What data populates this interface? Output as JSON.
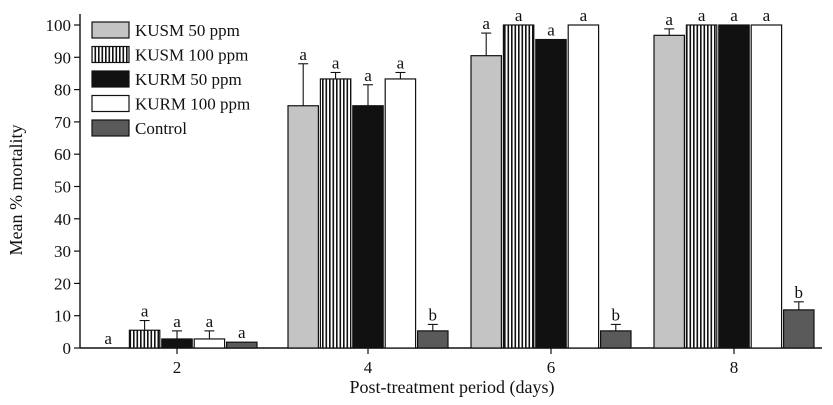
{
  "chart_data": {
    "type": "bar",
    "title": "",
    "xlabel": "Post-treatment period (days)",
    "ylabel": "Mean % mortality",
    "ylim": [
      0,
      100
    ],
    "yticks": [
      0,
      10,
      20,
      30,
      40,
      50,
      60,
      70,
      80,
      90,
      100
    ],
    "categories": [
      "2",
      "4",
      "6",
      "8"
    ],
    "legend_position": "top-left",
    "grid": false,
    "series": [
      {
        "name": "KUSM 50 ppm",
        "fill": "#c4c4c4",
        "pattern": "solid",
        "values": [
          0,
          75,
          90.5,
          96.8
        ],
        "errors": [
          0,
          13,
          7,
          2
        ],
        "labels": [
          "a",
          "a",
          "a",
          "a"
        ]
      },
      {
        "name": "KUSM 100 ppm",
        "fill": "#ffffff",
        "pattern": "vertical-stripes",
        "values": [
          5.5,
          83.3,
          100,
          100
        ],
        "errors": [
          3,
          2,
          0,
          0
        ],
        "labels": [
          "a",
          "a",
          "a",
          "a"
        ]
      },
      {
        "name": "KURM 50 ppm",
        "fill": "#111111",
        "pattern": "solid",
        "values": [
          2.8,
          75,
          95.5,
          100
        ],
        "errors": [
          2.5,
          6.5,
          0,
          0
        ],
        "labels": [
          "a",
          "a",
          "a",
          "a"
        ]
      },
      {
        "name": "KURM 100 ppm",
        "fill": "#ffffff",
        "pattern": "solid",
        "values": [
          2.8,
          83.3,
          100,
          100
        ],
        "errors": [
          2.5,
          2,
          0,
          0
        ],
        "labels": [
          "a",
          "a",
          "a",
          "a"
        ]
      },
      {
        "name": "Control",
        "fill": "#5a5a5a",
        "pattern": "solid",
        "values": [
          1.8,
          5.3,
          5.3,
          11.8
        ],
        "errors": [
          0,
          2,
          2,
          2.5
        ],
        "labels": [
          "a",
          "b",
          "b",
          "b"
        ]
      }
    ]
  }
}
